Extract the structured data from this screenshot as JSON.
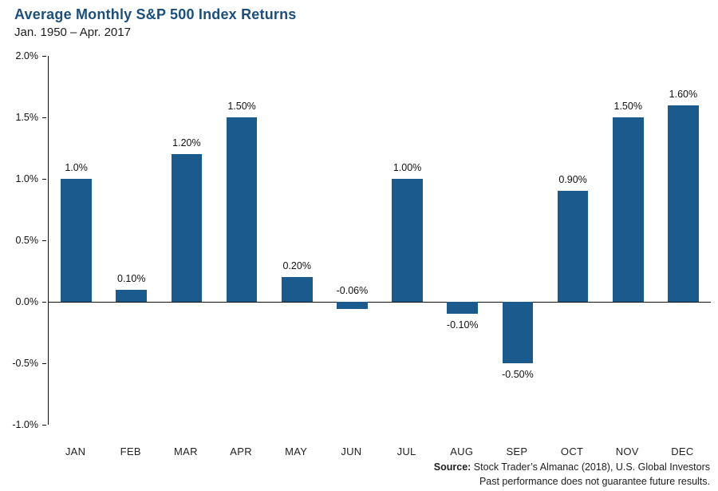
{
  "header": {
    "title": "Average Monthly S&P 500 Index Returns",
    "subtitle": "Jan. 1950 – Apr. 2017"
  },
  "chart_data": {
    "type": "bar",
    "title": "Average Monthly S&P 500 Index Returns",
    "subtitle": "Jan. 1950 – Apr. 2017",
    "categories": [
      "JAN",
      "FEB",
      "MAR",
      "APR",
      "MAY",
      "JUN",
      "JUL",
      "AUG",
      "SEP",
      "OCT",
      "NOV",
      "DEC"
    ],
    "values": [
      1.0,
      0.1,
      1.2,
      1.5,
      0.2,
      -0.06,
      1.0,
      -0.1,
      -0.5,
      0.9,
      1.5,
      1.6
    ],
    "value_labels": [
      "1.0%",
      "0.10%",
      "1.20%",
      "1.50%",
      "0.20%",
      "-0.06%",
      "1.00%",
      "-0.10%",
      "-0.50%",
      "0.90%",
      "1.50%",
      "1.60%"
    ],
    "y_ticks": [
      "2.0%",
      "1.5%",
      "1.0%",
      "0.5%",
      "0.0%",
      "-0.5%",
      "-1.0%"
    ],
    "ylim": [
      -1.0,
      2.0
    ],
    "xlabel": "",
    "ylabel": "",
    "grid": false,
    "legend": false,
    "bar_color": "#1B5A8C",
    "title_color": "#1B4F7E"
  },
  "footer": {
    "source_label": "Source:",
    "source_text": " Stock Trader’s Almanac (2018), U.S. Global Investors",
    "disclaimer": "Past performance does not guarantee future results."
  }
}
